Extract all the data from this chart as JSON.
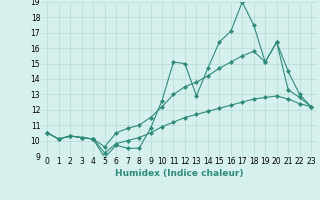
{
  "xlabel": "Humidex (Indice chaleur)",
  "x": [
    0,
    1,
    2,
    3,
    4,
    5,
    6,
    7,
    8,
    9,
    10,
    11,
    12,
    13,
    14,
    15,
    16,
    17,
    18,
    19,
    20,
    21,
    22,
    23
  ],
  "line1": [
    10.5,
    10.1,
    10.3,
    10.2,
    10.1,
    8.9,
    9.7,
    9.5,
    9.5,
    10.8,
    12.6,
    15.1,
    15.0,
    12.9,
    14.7,
    16.4,
    17.1,
    19.0,
    17.5,
    15.1,
    16.4,
    13.3,
    12.8,
    12.2
  ],
  "line2": [
    10.5,
    10.1,
    10.3,
    10.2,
    10.1,
    9.6,
    10.5,
    10.8,
    11.0,
    11.5,
    12.2,
    13.0,
    13.5,
    13.8,
    14.2,
    14.7,
    15.1,
    15.5,
    15.8,
    15.1,
    16.4,
    14.5,
    13.0,
    12.2
  ],
  "line3": [
    10.5,
    10.1,
    10.3,
    10.2,
    10.1,
    9.2,
    9.8,
    10.0,
    10.2,
    10.5,
    10.9,
    11.2,
    11.5,
    11.7,
    11.9,
    12.1,
    12.3,
    12.5,
    12.7,
    12.8,
    12.9,
    12.7,
    12.4,
    12.2
  ],
  "line_color": "#2E8B7A",
  "bg_color": "#d6f0ee",
  "grid_color": "#b8dbd8",
  "ylim": [
    9,
    19
  ],
  "xlim": [
    -0.5,
    23.5
  ],
  "yticks": [
    9,
    10,
    11,
    12,
    13,
    14,
    15,
    16,
    17,
    18,
    19
  ],
  "xticks": [
    0,
    1,
    2,
    3,
    4,
    5,
    6,
    7,
    8,
    9,
    10,
    11,
    12,
    13,
    14,
    15,
    16,
    17,
    18,
    19,
    20,
    21,
    22,
    23
  ],
  "tick_fontsize": 5.5,
  "xlabel_fontsize": 6.5,
  "marker": "D",
  "marker_size": 2.0,
  "linewidth": 0.8
}
